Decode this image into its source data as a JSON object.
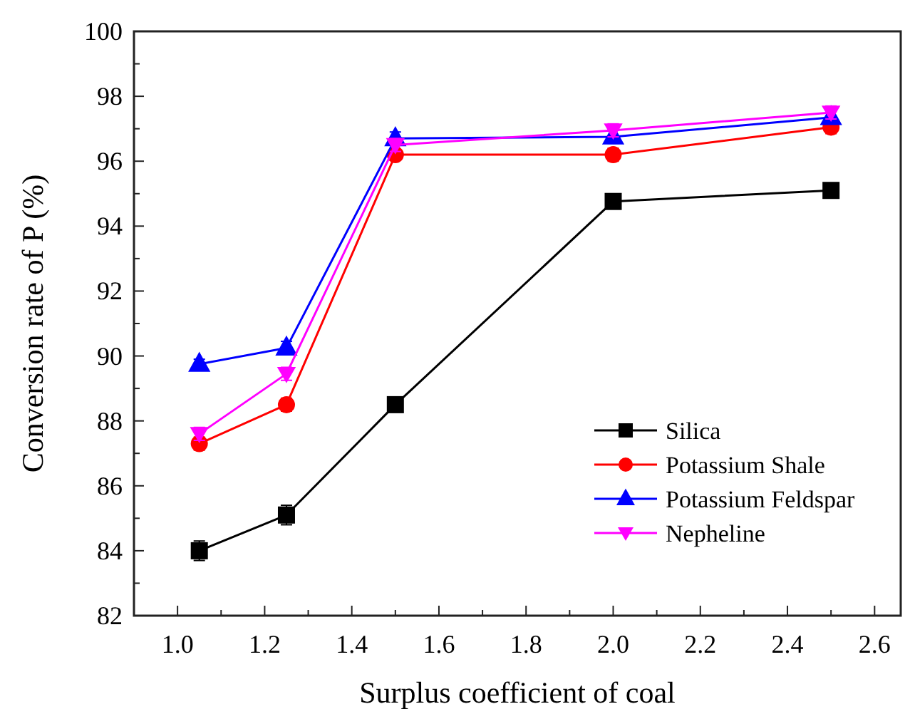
{
  "chart_data": {
    "type": "line",
    "xlabel": "Surplus coefficient of coal",
    "ylabel": "Conversion rate of P (%)",
    "x": [
      1.05,
      1.25,
      1.5,
      2.0,
      2.5
    ],
    "xlim": [
      0.9,
      2.66
    ],
    "xticks": [
      {
        "value": 0.9,
        "label": null
      },
      {
        "value": 1,
        "label": "1.0"
      },
      {
        "value": 1.1,
        "label": null
      },
      1.2,
      {
        "value": 1.3,
        "label": null
      },
      1.4,
      {
        "value": 1.5,
        "label": null
      },
      1.6,
      {
        "value": 1.7,
        "label": null
      },
      1.8,
      {
        "value": 1.9,
        "label": null
      },
      {
        "value": 2,
        "label": "2.0"
      },
      {
        "value": 2.1,
        "label": null
      },
      2.2,
      {
        "value": 2.3,
        "label": null
      },
      2.4,
      {
        "value": 2.5,
        "label": null
      },
      2.6
    ],
    "ylim": [
      82,
      100
    ],
    "yticks": [
      82,
      {
        "value": 83,
        "label": null
      },
      84,
      {
        "value": 85,
        "label": null
      },
      86,
      {
        "value": 87,
        "label": null
      },
      88,
      {
        "value": 89,
        "label": null
      },
      90,
      {
        "value": 91,
        "label": null
      },
      92,
      {
        "value": 93,
        "label": null
      },
      94,
      {
        "value": 95,
        "label": null
      },
      96,
      {
        "value": 97,
        "label": null
      },
      98,
      {
        "value": 99,
        "label": null
      },
      100
    ],
    "grid": false,
    "legend": "bottom right",
    "line_style": "solid",
    "series": [
      {
        "name": "Silica",
        "color": "#000000",
        "marker": "square",
        "values": [
          84.0,
          85.1,
          88.5,
          94.76,
          95.1
        ],
        "errors": [
          0.3,
          0.3,
          0.2,
          0.2,
          0.1
        ]
      },
      {
        "name": "Potassium Shale",
        "color": "#ff0000",
        "marker": "circle",
        "values": [
          87.3,
          88.5,
          96.2,
          96.2,
          97.05
        ],
        "errors": [
          0.2,
          0.2,
          0.15,
          0.2,
          0.2
        ]
      },
      {
        "name": "Potassium Feldspar",
        "color": "#0000ff",
        "marker": "triangle",
        "values": [
          89.75,
          90.25,
          96.7,
          96.75,
          97.35
        ],
        "errors": [
          0.15,
          0.2,
          0.2,
          0.2,
          0.2
        ]
      },
      {
        "name": "Nepheline",
        "color": "#ff00ff",
        "marker": "triangle-down",
        "values": [
          87.6,
          89.45,
          96.5,
          96.95,
          97.5
        ],
        "errors": [
          0.2,
          0.2,
          0.2,
          0.2,
          0.2
        ]
      }
    ]
  }
}
